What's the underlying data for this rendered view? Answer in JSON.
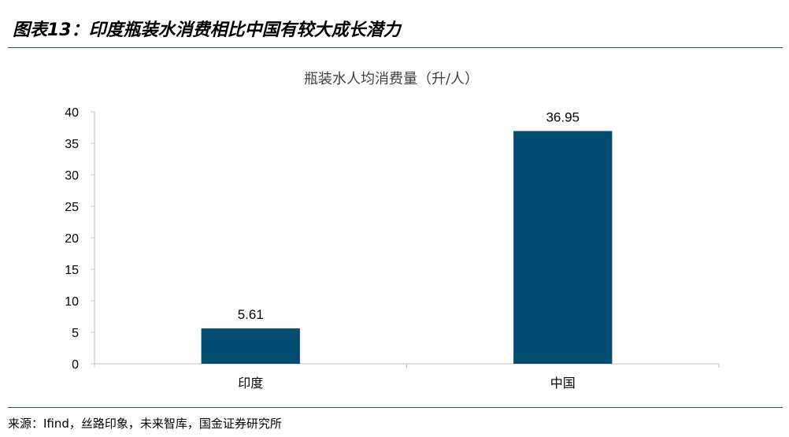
{
  "figure": {
    "title": "图表13：印度瓶装水消费相比中国有较大成长潜力",
    "source": "来源：Ifind，丝路印象，未来智库，国金证券研究所"
  },
  "colors": {
    "bar": "#004d71",
    "axis": "#bfbfbf",
    "rule": "#1f4e79"
  },
  "chart_data": {
    "type": "bar",
    "title": "瓶装水人均消费量（升/人）",
    "categories": [
      "印度",
      "中国"
    ],
    "values": [
      5.61,
      36.95
    ],
    "data_labels": [
      "5.61",
      "36.95"
    ],
    "ylim": [
      0,
      40
    ],
    "yticks": [
      0,
      5,
      10,
      15,
      20,
      25,
      30,
      35,
      40
    ],
    "xlabel": "",
    "ylabel": "",
    "grid": false,
    "legend": "none"
  }
}
